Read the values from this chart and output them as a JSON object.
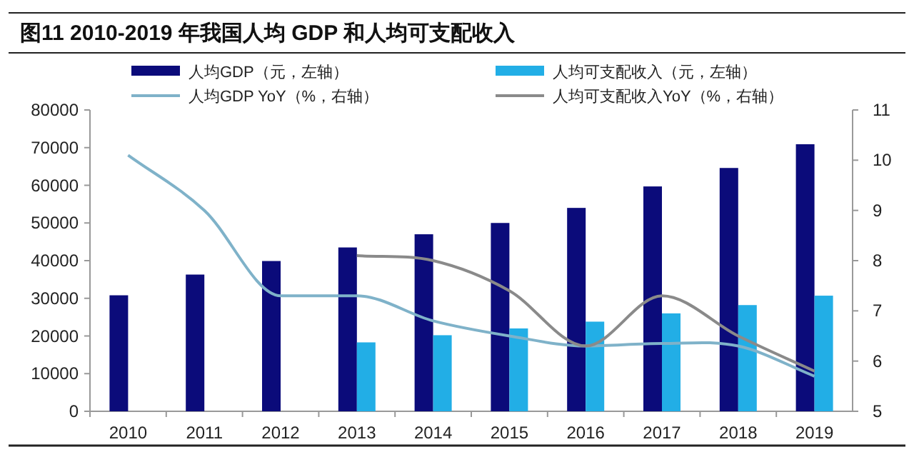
{
  "chart_data": {
    "type": "bar",
    "title": "图11 2010-2019 年我国人均 GDP 和人均可支配收入",
    "categories": [
      "2010",
      "2011",
      "2012",
      "2013",
      "2014",
      "2015",
      "2016",
      "2017",
      "2018",
      "2019"
    ],
    "series": [
      {
        "name": "人均GDP（元，左轴）",
        "color": "#0b0b7a",
        "values": [
          30800,
          36300,
          39900,
          43500,
          47000,
          50000,
          54000,
          59700,
          64600,
          70900
        ]
      },
      {
        "name": "人均可支配收入（元，左轴）",
        "color": "#22aee6",
        "values": [
          null,
          null,
          null,
          18300,
          20200,
          22000,
          23800,
          26000,
          28200,
          30700
        ]
      },
      {
        "name": "人均GDP YoY（%，右轴）",
        "type": "line",
        "axis": "y2",
        "color": "#7fb2c9",
        "values": [
          10.1,
          9.0,
          7.3,
          7.3,
          6.8,
          6.5,
          6.3,
          6.35,
          6.3,
          5.7
        ]
      },
      {
        "name": "人均可支配收入YoY（%，右轴）",
        "type": "line",
        "axis": "y2",
        "color": "#8a8a8a",
        "values": [
          null,
          null,
          null,
          8.1,
          8.0,
          7.4,
          6.3,
          7.3,
          6.5,
          5.8
        ]
      }
    ],
    "ylim": [
      0,
      80000
    ],
    "yticks": [
      0,
      10000,
      20000,
      30000,
      40000,
      50000,
      60000,
      70000,
      80000
    ],
    "y2lim": [
      5,
      11
    ],
    "y2ticks": [
      5,
      6,
      7,
      8,
      9,
      10,
      11
    ],
    "legend": "top",
    "grid": false,
    "marker": "none",
    "line_style": "solid"
  }
}
